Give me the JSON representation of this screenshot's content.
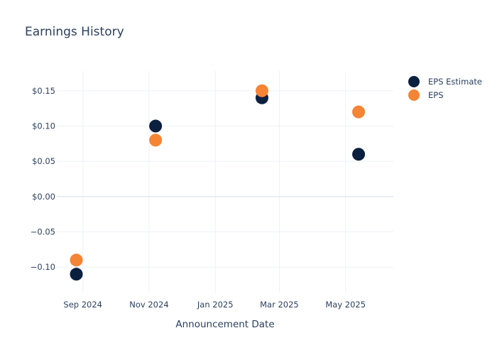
{
  "chart_data": {
    "type": "scatter",
    "title": "Earnings History",
    "xlabel": "Announcement Date",
    "ylabel": "",
    "x_ticks": [
      "Sep 2024",
      "Nov 2024",
      "Jan 2025",
      "Mar 2025",
      "May 2025"
    ],
    "x_tick_dates": [
      "2024-09-01",
      "2024-11-01",
      "2025-01-01",
      "2025-03-01",
      "2025-05-01"
    ],
    "xlim": [
      "2024-08-08",
      "2025-06-14"
    ],
    "y_ticks": [
      0.15,
      0.1,
      0.05,
      0.0,
      -0.05,
      -0.1
    ],
    "y_tick_labels": [
      "$0.15",
      "$0.10",
      "$0.05",
      "$0.00",
      "−0.05",
      "−0.10"
    ],
    "ylim": [
      -0.136,
      0.178
    ],
    "legend_position": "top-right",
    "series": [
      {
        "name": "EPS Estimate",
        "color": "#0b1f3f",
        "points": [
          {
            "date": "2024-08-26",
            "value": -0.11
          },
          {
            "date": "2024-11-07",
            "value": 0.1
          },
          {
            "date": "2025-02-13",
            "value": 0.14
          },
          {
            "date": "2025-05-13",
            "value": 0.06
          }
        ]
      },
      {
        "name": "EPS",
        "color": "#f58434",
        "points": [
          {
            "date": "2024-08-26",
            "value": -0.09
          },
          {
            "date": "2024-11-07",
            "value": 0.08
          },
          {
            "date": "2025-02-13",
            "value": 0.15
          },
          {
            "date": "2025-05-13",
            "value": 0.12
          }
        ]
      }
    ]
  }
}
